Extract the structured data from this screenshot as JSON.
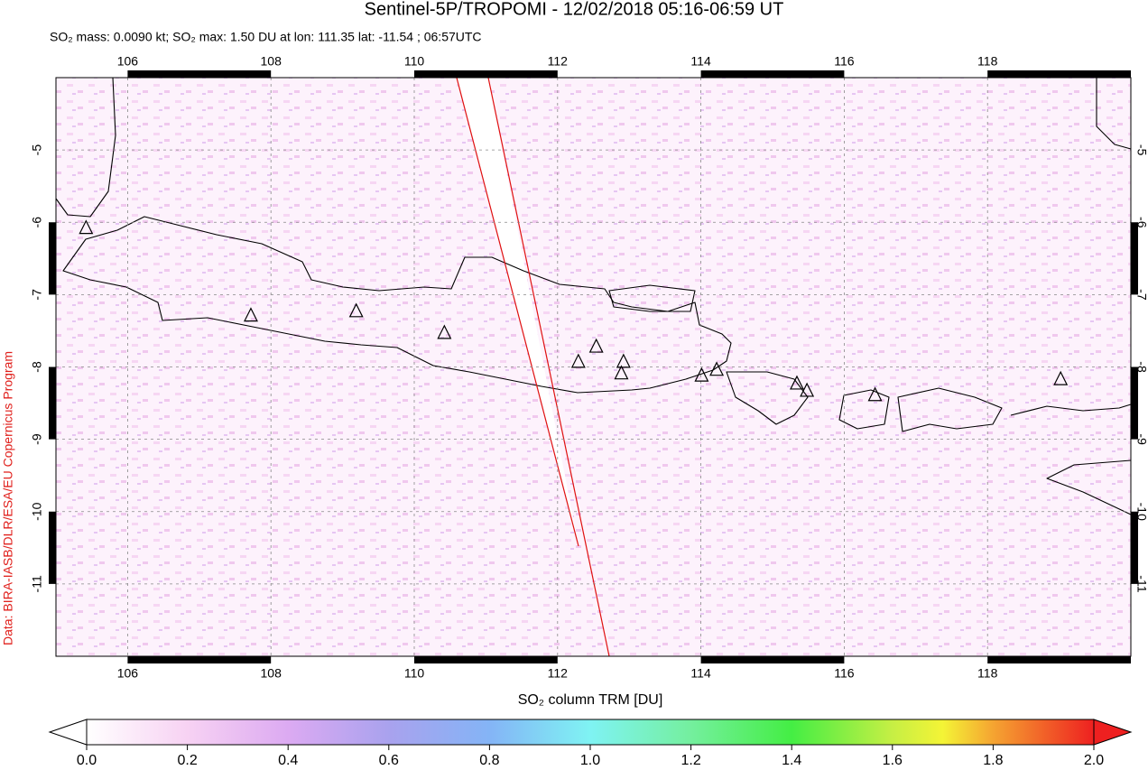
{
  "chart_data": {
    "type": "map",
    "title": "Sentinel-5P/TROPOMI - 12/02/2018 05:16-06:59 UT",
    "subtitle": "SO₂ mass: 0.0090 kt; SO₂ max: 1.50 DU at lon: 111.35 lat: -11.54 ; 06:57UTC",
    "credit": "Data: BIRA-IASB/DLR/ESA/EU Copernicus Program",
    "xlim": [
      105,
      120
    ],
    "ylim": [
      -12,
      -4
    ],
    "xticks": [
      106,
      108,
      110,
      112,
      114,
      116,
      118
    ],
    "yticks": [
      -5,
      -6,
      -7,
      -8,
      -9,
      -10,
      -11
    ],
    "grid": true,
    "volcanoes": {
      "lon": [
        105.42,
        107.72,
        109.19,
        110.42,
        112.29,
        112.54,
        112.92,
        112.89,
        114.01,
        114.22,
        115.34,
        115.48,
        116.43,
        119.02
      ],
      "lat": [
        -6.08,
        -7.29,
        -7.23,
        -7.53,
        -7.93,
        -7.72,
        -7.93,
        -8.09,
        -8.12,
        -8.04,
        -8.23,
        -8.33,
        -8.39,
        -8.17
      ]
    },
    "colorbar": {
      "label": "SO₂ column TRM [DU]",
      "lim": [
        0,
        2
      ],
      "ticks": [
        {
          "value": 0,
          "label": "0.0"
        },
        {
          "value": 0.2,
          "label": "0.2"
        },
        {
          "value": 0.4,
          "label": "0.4"
        },
        {
          "value": 0.6,
          "label": "0.6"
        },
        {
          "value": 0.8,
          "label": "0.8"
        },
        {
          "value": 1,
          "label": "1.0"
        },
        {
          "value": 1.2,
          "label": "1.2"
        },
        {
          "value": 1.4,
          "label": "1.4"
        },
        {
          "value": 1.6,
          "label": "1.6"
        },
        {
          "value": 1.8,
          "label": "1.8"
        },
        {
          "value": 2,
          "label": "2.0"
        }
      ]
    }
  }
}
